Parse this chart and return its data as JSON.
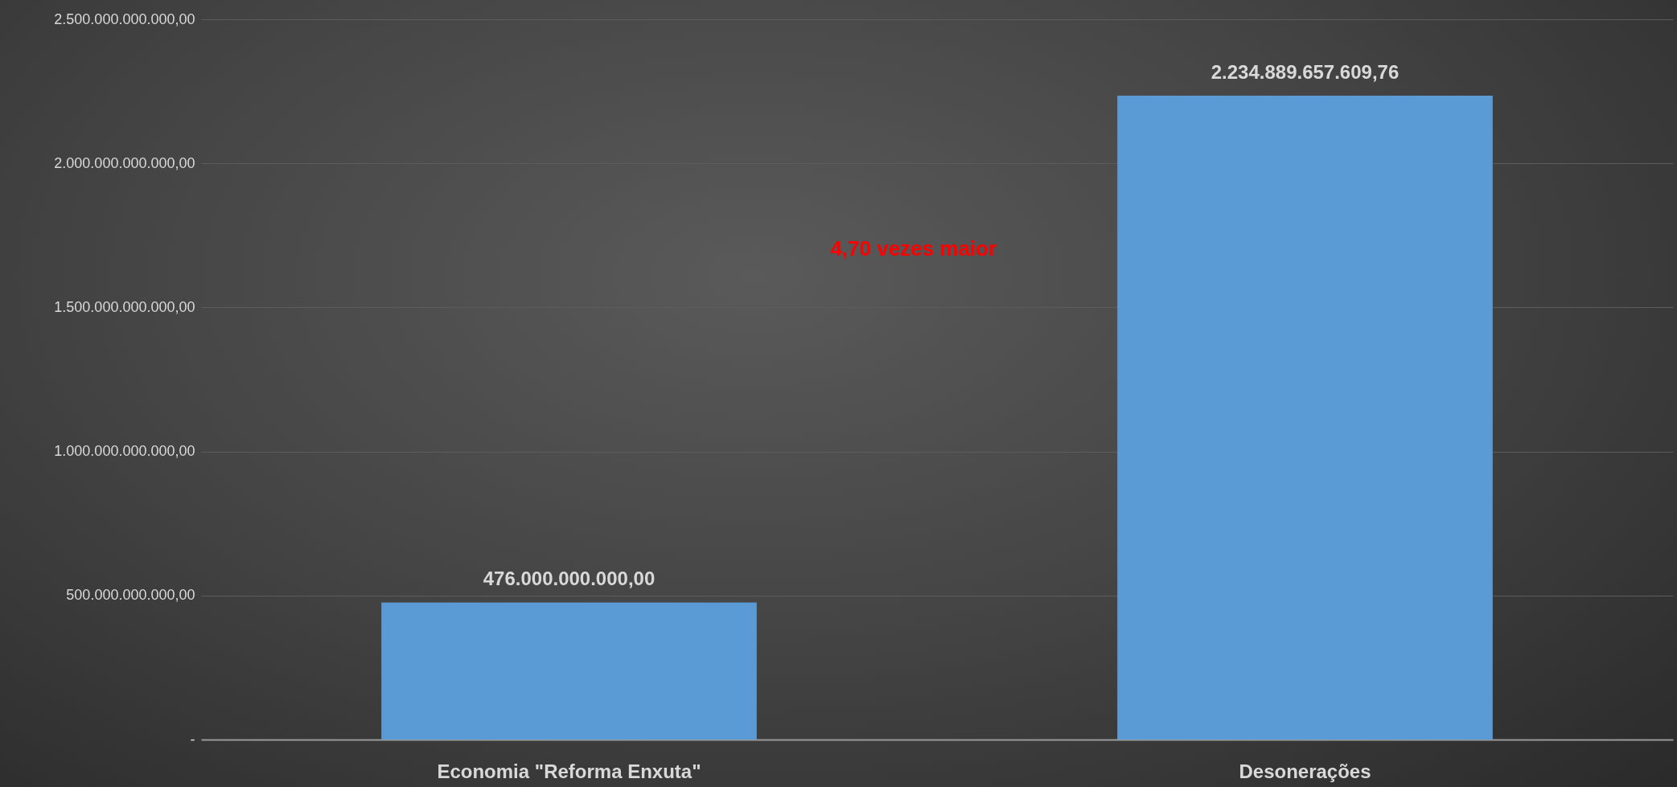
{
  "chart_data": {
    "type": "bar",
    "categories": [
      "Economia \"Reforma Enxuta\"",
      "Desonerações"
    ],
    "values": [
      476000000000,
      2234889657609.76
    ],
    "value_labels": [
      "476.000.000.000,00",
      "2.234.889.657.609,76"
    ],
    "color": "#5b9bd5",
    "ylim": [
      0,
      2500000000000
    ],
    "yticks": [
      {
        "value": 0,
        "label": "-"
      },
      {
        "value": 500000000000,
        "label": "500.000.000.000,00"
      },
      {
        "value": 1000000000000,
        "label": "1.000.000.000.000,00"
      },
      {
        "value": 1500000000000,
        "label": "1.500.000.000.000,00"
      },
      {
        "value": 2000000000000,
        "label": "2.000.000.000.000,00"
      },
      {
        "value": 2500000000000,
        "label": "2.500.000.000.000,00"
      }
    ],
    "grid": "y",
    "annotations": [
      "4,70 vezes maior"
    ]
  }
}
